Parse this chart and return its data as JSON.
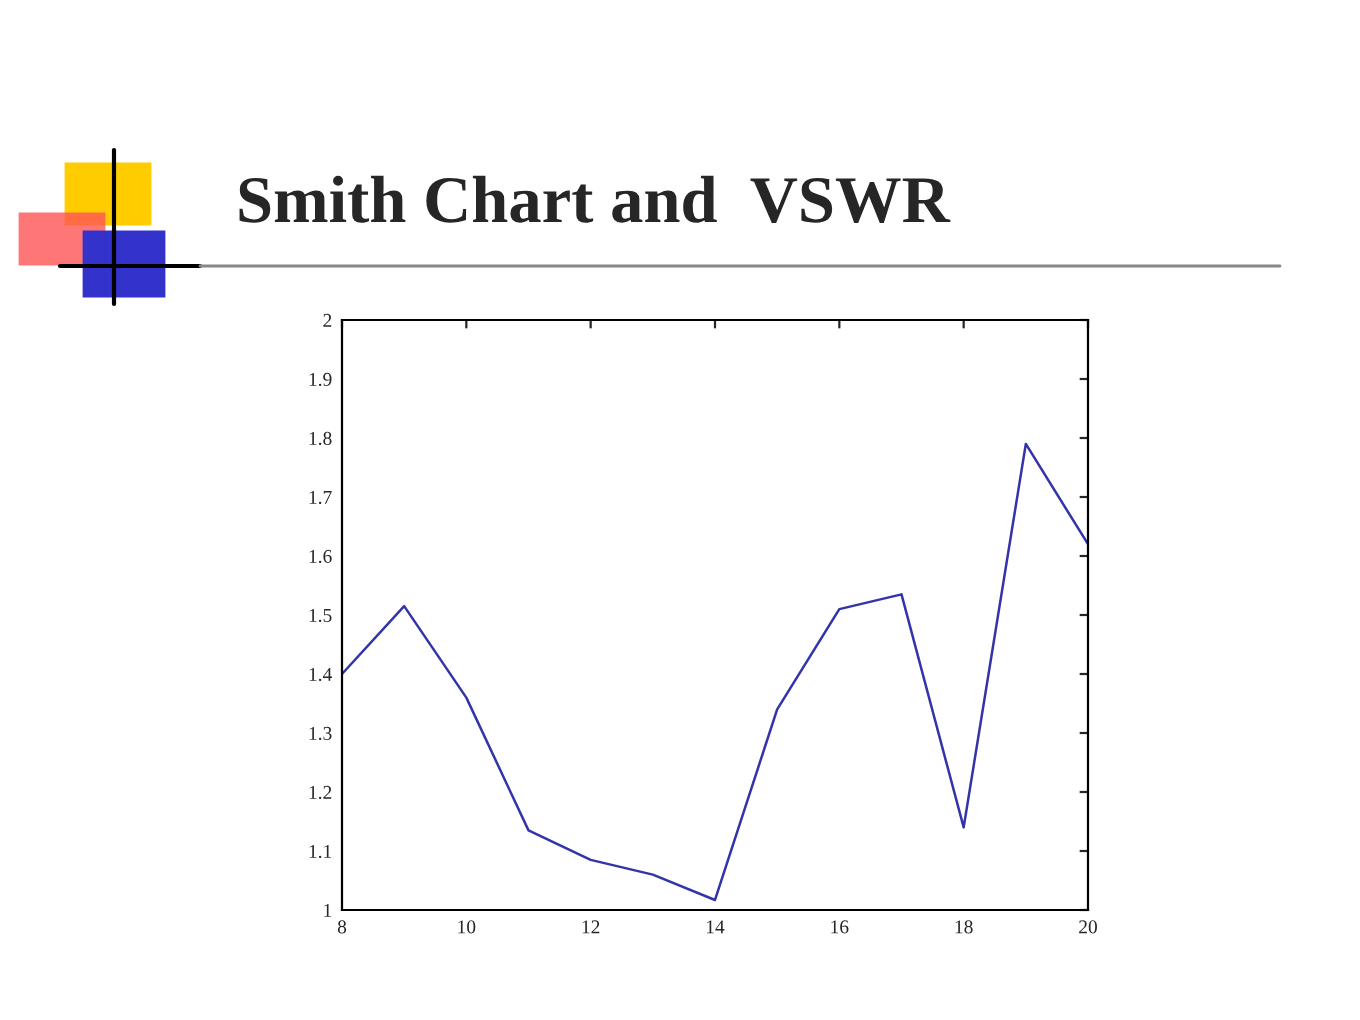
{
  "chart_data": {
    "type": "line",
    "title": "Smith Chart and  VSWR",
    "x": [
      8,
      9,
      10,
      11,
      12,
      13,
      14,
      15,
      16,
      17,
      18,
      19,
      20
    ],
    "series": [
      {
        "color": "#3333aa",
        "values": [
          1.4,
          1.515,
          1.36,
          1.135,
          1.085,
          1.06,
          1.017,
          1.34,
          1.51,
          1.535,
          1.14,
          1.79,
          1.62
        ]
      }
    ],
    "xlim": [
      8,
      20
    ],
    "xticks": [
      8,
      10,
      12,
      14,
      16,
      18,
      20
    ],
    "ylim": [
      1,
      2
    ],
    "yticks": [
      1,
      1.1,
      1.2,
      1.3,
      1.4,
      1.5,
      1.6,
      1.7,
      1.8,
      1.9,
      2
    ],
    "grid": false,
    "legend": false,
    "marker": "none",
    "line_style": "solid"
  }
}
